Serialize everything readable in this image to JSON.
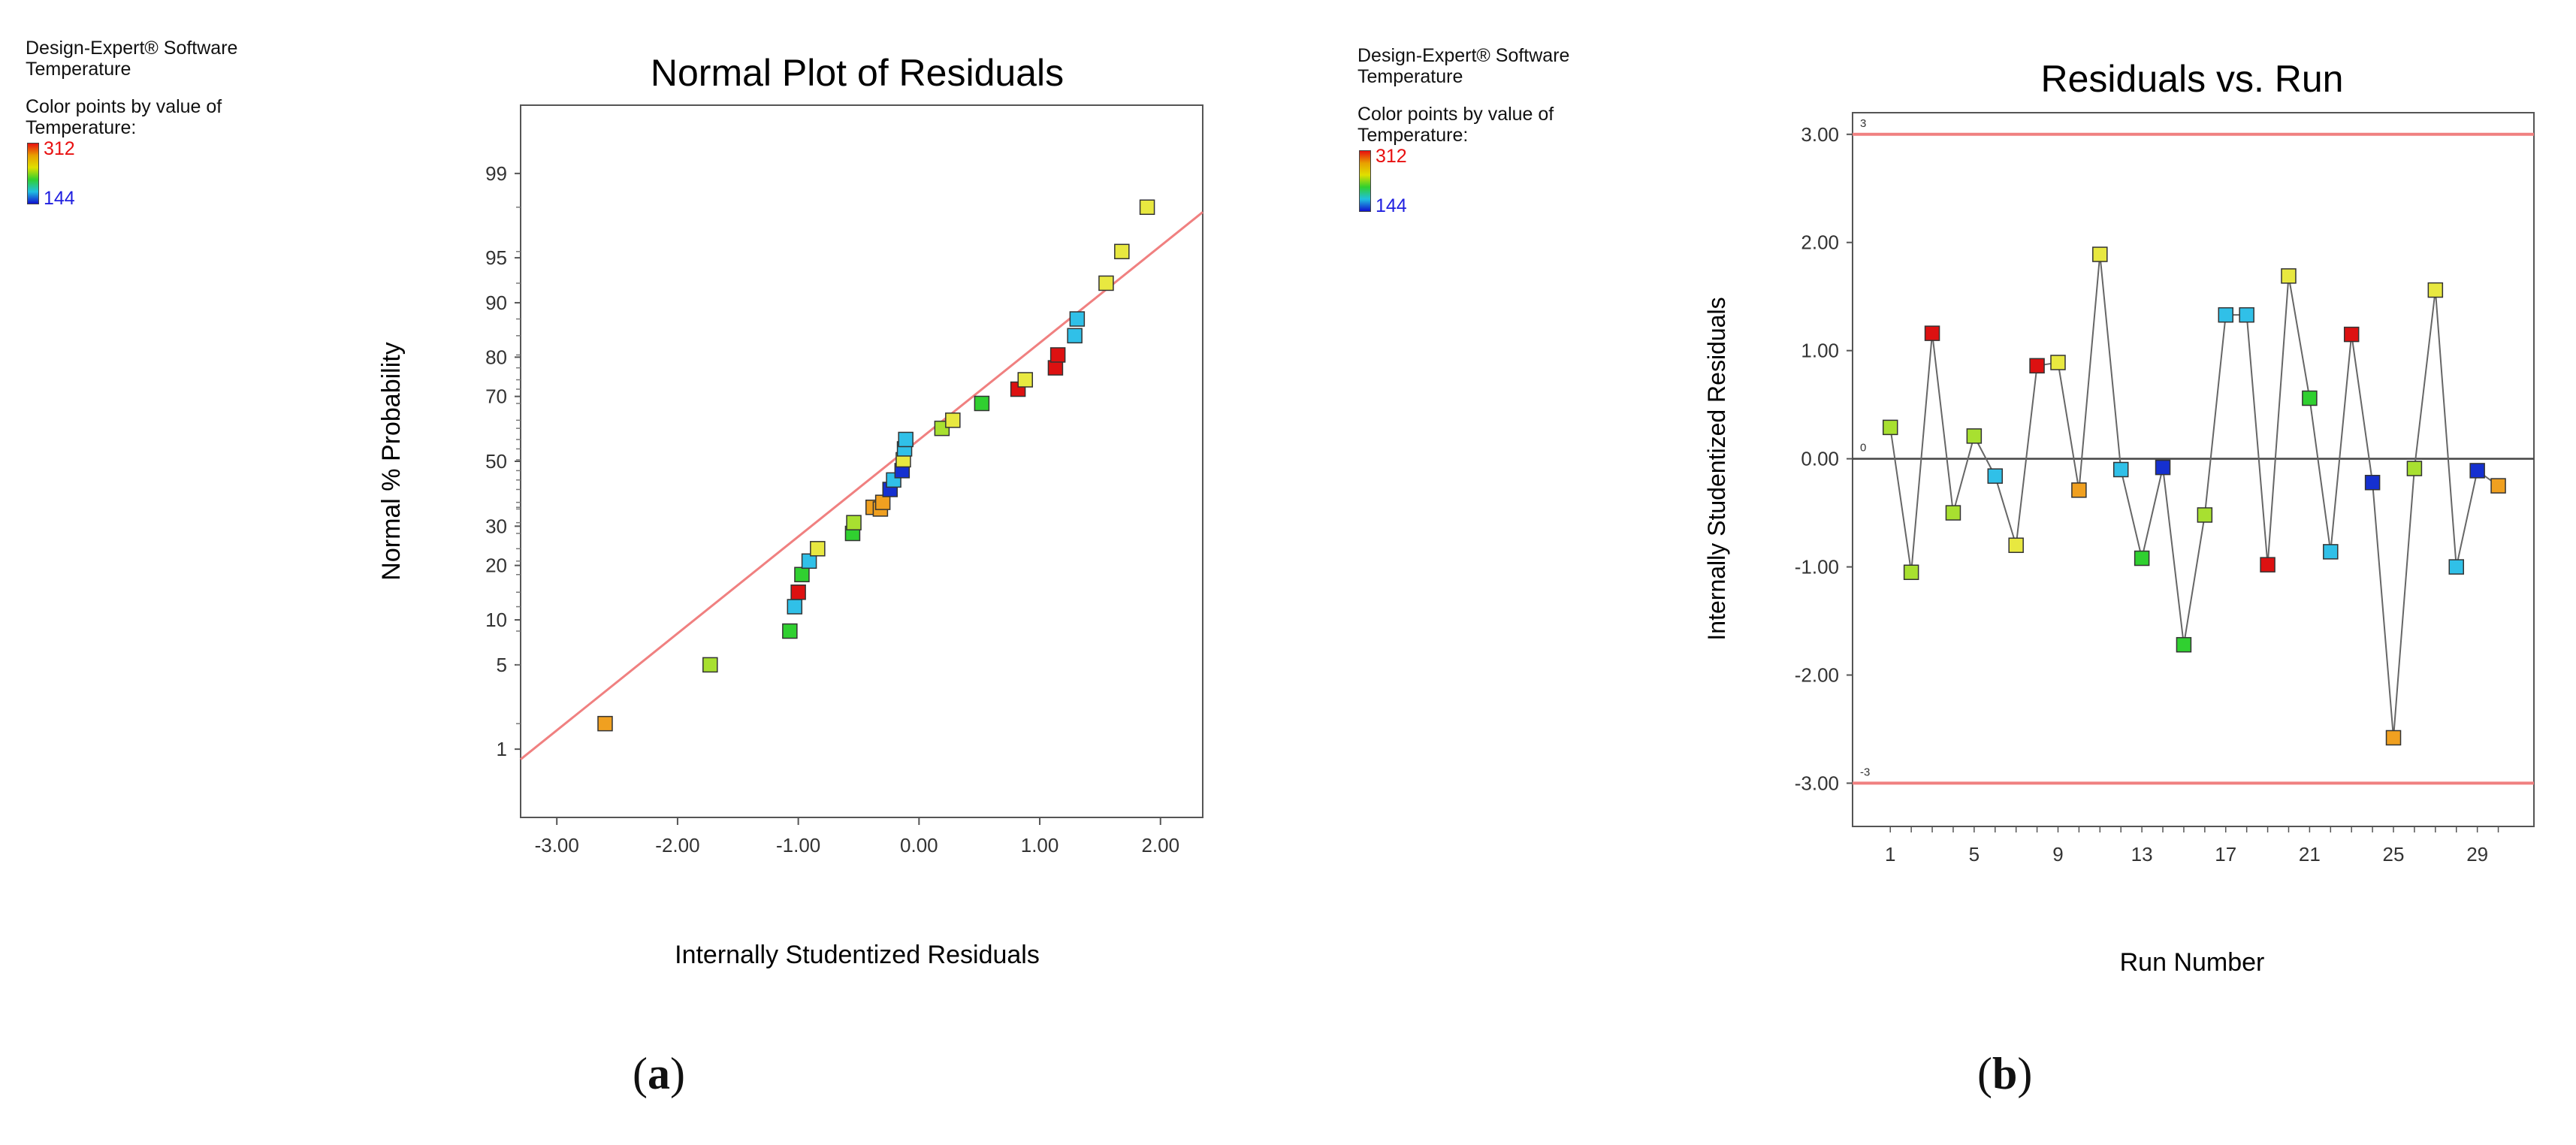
{
  "panels": [
    {
      "software": "Design-Expert® Software",
      "factor": "Temperature",
      "color_label_1": "Color points by value of",
      "color_label_2": "Temperature:",
      "color_max": "312",
      "color_min": "144",
      "caption": "a"
    },
    {
      "software": "Design-Expert® Software",
      "factor": "Temperature",
      "color_label_1": "Color points by value of",
      "color_label_2": "Temperature:",
      "color_max": "312",
      "color_min": "144",
      "caption": "b"
    }
  ],
  "colors": {
    "fit_line": "#f08080",
    "limit_line": "#f08080",
    "red": "#dd1111",
    "orange": "#f0a020",
    "yellow": "#e8e840",
    "lime": "#a8e030",
    "green": "#30d030",
    "cyan": "#30c0e8",
    "blue": "#1530d0"
  },
  "chart_data": [
    {
      "type": "scatter",
      "title": "Normal Plot of Residuals",
      "xlabel": "Internally Studentized Residuals",
      "ylabel": "Normal % Probability",
      "xlim": [
        -3.3,
        2.35
      ],
      "ylim_probability": [
        0.2,
        99.8
      ],
      "x_ticks": [
        "-3.00",
        "-2.00",
        "-1.00",
        "0.00",
        "1.00",
        "2.00"
      ],
      "x_tick_values": [
        -3,
        -2,
        -1,
        0,
        1,
        2
      ],
      "y_ticks": [
        "1",
        "5",
        "10",
        "20",
        "30",
        "50",
        "70",
        "80",
        "90",
        "95",
        "99"
      ],
      "y_tick_values": [
        1,
        5,
        10,
        20,
        30,
        50,
        70,
        80,
        90,
        95,
        99
      ],
      "fit_line": {
        "x": [
          -3.3,
          2.35
        ],
        "prob": [
          0.8,
          97.8
        ]
      },
      "points": [
        {
          "x": -2.6,
          "p": 1.7,
          "c": "orange"
        },
        {
          "x": -1.73,
          "p": 5.0,
          "c": "lime"
        },
        {
          "x": -1.07,
          "p": 8.5,
          "c": "green"
        },
        {
          "x": -1.03,
          "p": 12.0,
          "c": "cyan"
        },
        {
          "x": -1.0,
          "p": 14.5,
          "c": "red"
        },
        {
          "x": -0.97,
          "p": 18.0,
          "c": "green"
        },
        {
          "x": -0.91,
          "p": 21.0,
          "c": "cyan"
        },
        {
          "x": -0.84,
          "p": 24.0,
          "c": "yellow"
        },
        {
          "x": -0.55,
          "p": 28.0,
          "c": "green"
        },
        {
          "x": -0.54,
          "p": 31.0,
          "c": "lime"
        },
        {
          "x": -0.38,
          "p": 35.5,
          "c": "orange"
        },
        {
          "x": -0.32,
          "p": 35.0,
          "c": "orange"
        },
        {
          "x": -0.3,
          "p": 37.0,
          "c": "orange"
        },
        {
          "x": -0.24,
          "p": 41.0,
          "c": "blue"
        },
        {
          "x": -0.21,
          "p": 44.0,
          "c": "cyan"
        },
        {
          "x": -0.14,
          "p": 47.0,
          "c": "blue"
        },
        {
          "x": -0.13,
          "p": 50.5,
          "c": "yellow"
        },
        {
          "x": -0.12,
          "p": 54.0,
          "c": "cyan"
        },
        {
          "x": -0.11,
          "p": 57.0,
          "c": "cyan"
        },
        {
          "x": 0.19,
          "p": 60.5,
          "c": "lime"
        },
        {
          "x": 0.28,
          "p": 63.0,
          "c": "yellow"
        },
        {
          "x": 0.52,
          "p": 68.0,
          "c": "green"
        },
        {
          "x": 0.82,
          "p": 72.0,
          "c": "red"
        },
        {
          "x": 0.88,
          "p": 74.5,
          "c": "yellow"
        },
        {
          "x": 1.13,
          "p": 77.5,
          "c": "red"
        },
        {
          "x": 1.15,
          "p": 80.5,
          "c": "red"
        },
        {
          "x": 1.29,
          "p": 84.5,
          "c": "cyan"
        },
        {
          "x": 1.31,
          "p": 87.5,
          "c": "cyan"
        },
        {
          "x": 1.55,
          "p": 92.5,
          "c": "yellow"
        },
        {
          "x": 1.68,
          "p": 95.5,
          "c": "yellow"
        },
        {
          "x": 1.89,
          "p": 98.0,
          "c": "yellow"
        }
      ]
    },
    {
      "type": "line",
      "title": "Residuals vs. Run",
      "xlabel": "Run Number",
      "ylabel": "Internally Studentized Residuals",
      "xlim": [
        -0.8,
        31.7
      ],
      "ylim": [
        -3.4,
        3.2
      ],
      "x_ticks": [
        "1",
        "5",
        "9",
        "13",
        "17",
        "21",
        "25",
        "29"
      ],
      "x_tick_values": [
        1,
        5,
        9,
        13,
        17,
        21,
        25,
        29
      ],
      "y_ticks": [
        "3.00",
        "2.00",
        "1.00",
        "0.00",
        "-1.00",
        "-2.00",
        "-3.00"
      ],
      "y_tick_values": [
        3,
        2,
        1,
        0,
        -1,
        -2,
        -3
      ],
      "limit_upper": 3,
      "limit_lower": -3,
      "limit_upper_label": "3",
      "limit_lower_label": "-3",
      "zero_label": "0",
      "runs": [
        1,
        2,
        3,
        4,
        5,
        6,
        7,
        8,
        9,
        10,
        11,
        12,
        13,
        14,
        15,
        16,
        17,
        18,
        19,
        20,
        21,
        22,
        23,
        24,
        25,
        26,
        27,
        28,
        29,
        30
      ],
      "values": [
        0.29,
        -1.05,
        1.16,
        -0.5,
        0.21,
        -0.16,
        -0.8,
        0.86,
        0.89,
        -0.29,
        1.89,
        -0.1,
        -0.92,
        -0.08,
        -1.72,
        -0.52,
        1.33,
        1.33,
        -0.98,
        1.69,
        0.56,
        -0.86,
        1.15,
        -0.22,
        -2.58,
        -0.09,
        1.56,
        -1.0,
        -0.11,
        -0.25
      ],
      "point_colors": [
        "lime",
        "lime",
        "red",
        "lime",
        "lime",
        "cyan",
        "yellow",
        "red",
        "yellow",
        "orange",
        "yellow",
        "cyan",
        "green",
        "blue",
        "green",
        "lime",
        "cyan",
        "cyan",
        "red",
        "yellow",
        "green",
        "cyan",
        "red",
        "blue",
        "orange",
        "lime",
        "yellow",
        "cyan",
        "blue",
        "orange"
      ]
    }
  ]
}
